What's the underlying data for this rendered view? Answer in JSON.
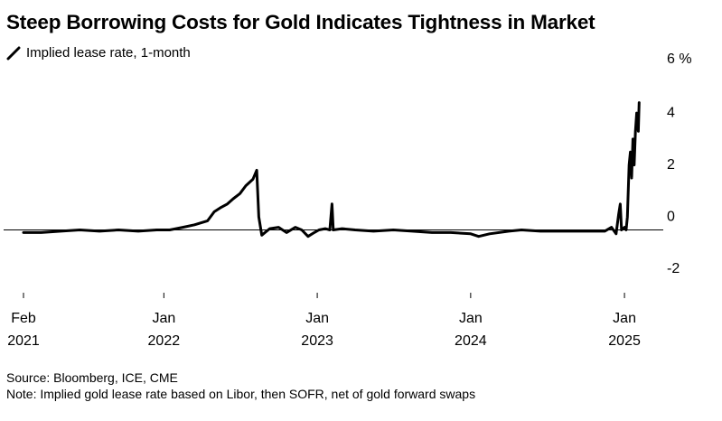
{
  "title": "Steep Borrowing Costs for Gold Indicates Tightness in Market",
  "legend": {
    "series_name": "Implied lease rate, 1-month",
    "icon": "line-swatch-icon"
  },
  "footer": {
    "source": "Source: Bloomberg, ICE, CME",
    "note": "Note: Implied gold lease rate based on Libor, then SOFR, net of gold forward swaps"
  },
  "colors": {
    "line": "#000000",
    "axis": "#000000",
    "background": "#ffffff"
  },
  "chart_data": {
    "type": "line",
    "title": "Steep Borrowing Costs for Gold Indicates Tightness in Market",
    "ylabel": "",
    "xlabel": "",
    "ylim": [
      -2,
      6
    ],
    "xlim": [
      "2021-02-01",
      "2025-02-15"
    ],
    "y_ticks": [
      {
        "value": 6,
        "label": "6 %"
      },
      {
        "value": 4,
        "label": "4"
      },
      {
        "value": 2,
        "label": "2"
      },
      {
        "value": 0,
        "label": "0"
      },
      {
        "value": -2,
        "label": "-2"
      }
    ],
    "x_ticks": [
      {
        "date": "2021-02-01",
        "line1": "Feb",
        "line2": "2021"
      },
      {
        "date": "2022-01-01",
        "line1": "Jan",
        "line2": "2022"
      },
      {
        "date": "2023-01-01",
        "line1": "Jan",
        "line2": "2023"
      },
      {
        "date": "2024-01-01",
        "line1": "Jan",
        "line2": "2024"
      },
      {
        "date": "2025-01-01",
        "line1": "Jan",
        "line2": "2025"
      }
    ],
    "zero_line": true,
    "grid": false,
    "legend_position": "top-left",
    "series": [
      {
        "name": "Implied lease rate, 1-month",
        "points": [
          [
            "2021-02-01",
            -0.1
          ],
          [
            "2021-03-15",
            -0.1
          ],
          [
            "2021-05-01",
            -0.05
          ],
          [
            "2021-06-15",
            0.0
          ],
          [
            "2021-08-01",
            -0.05
          ],
          [
            "2021-09-15",
            0.0
          ],
          [
            "2021-11-01",
            -0.05
          ],
          [
            "2021-12-15",
            0.0
          ],
          [
            "2022-01-15",
            0.0
          ],
          [
            "2022-02-15",
            0.1
          ],
          [
            "2022-03-15",
            0.2
          ],
          [
            "2022-04-15",
            0.35
          ],
          [
            "2022-05-01",
            0.7
          ],
          [
            "2022-05-15",
            0.85
          ],
          [
            "2022-06-01",
            1.0
          ],
          [
            "2022-06-15",
            1.2
          ],
          [
            "2022-07-01",
            1.4
          ],
          [
            "2022-07-15",
            1.7
          ],
          [
            "2022-08-01",
            1.95
          ],
          [
            "2022-08-10",
            2.3
          ],
          [
            "2022-08-15",
            0.5
          ],
          [
            "2022-08-22",
            -0.2
          ],
          [
            "2022-09-10",
            0.05
          ],
          [
            "2022-10-01",
            0.1
          ],
          [
            "2022-10-20",
            -0.1
          ],
          [
            "2022-11-10",
            0.1
          ],
          [
            "2022-11-25",
            0.0
          ],
          [
            "2022-12-10",
            -0.25
          ],
          [
            "2022-12-25",
            -0.1
          ],
          [
            "2023-01-05",
            0.0
          ],
          [
            "2023-01-20",
            0.05
          ],
          [
            "2023-01-31",
            0.0
          ],
          [
            "2023-02-05",
            1.0
          ],
          [
            "2023-02-08",
            0.0
          ],
          [
            "2023-03-01",
            0.05
          ],
          [
            "2023-04-01",
            0.0
          ],
          [
            "2023-05-15",
            -0.05
          ],
          [
            "2023-07-01",
            0.0
          ],
          [
            "2023-08-15",
            -0.05
          ],
          [
            "2023-10-01",
            -0.1
          ],
          [
            "2023-11-15",
            -0.1
          ],
          [
            "2024-01-01",
            -0.15
          ],
          [
            "2024-01-20",
            -0.25
          ],
          [
            "2024-02-15",
            -0.15
          ],
          [
            "2024-04-01",
            -0.05
          ],
          [
            "2024-05-01",
            0.0
          ],
          [
            "2024-06-15",
            -0.05
          ],
          [
            "2024-08-01",
            -0.05
          ],
          [
            "2024-09-15",
            -0.05
          ],
          [
            "2024-10-15",
            -0.05
          ],
          [
            "2024-11-15",
            -0.05
          ],
          [
            "2024-12-01",
            0.1
          ],
          [
            "2024-12-12",
            -0.15
          ],
          [
            "2024-12-18",
            0.6
          ],
          [
            "2024-12-22",
            1.0
          ],
          [
            "2024-12-25",
            0.0
          ],
          [
            "2025-01-01",
            0.1
          ],
          [
            "2025-01-05",
            0.0
          ],
          [
            "2025-01-08",
            0.5
          ],
          [
            "2025-01-12",
            2.5
          ],
          [
            "2025-01-15",
            3.0
          ],
          [
            "2025-01-18",
            2.0
          ],
          [
            "2025-01-21",
            3.5
          ],
          [
            "2025-01-24",
            2.5
          ],
          [
            "2025-01-27",
            3.8
          ],
          [
            "2025-01-30",
            4.5
          ],
          [
            "2025-02-03",
            3.8
          ],
          [
            "2025-02-05",
            4.9
          ]
        ]
      }
    ]
  }
}
